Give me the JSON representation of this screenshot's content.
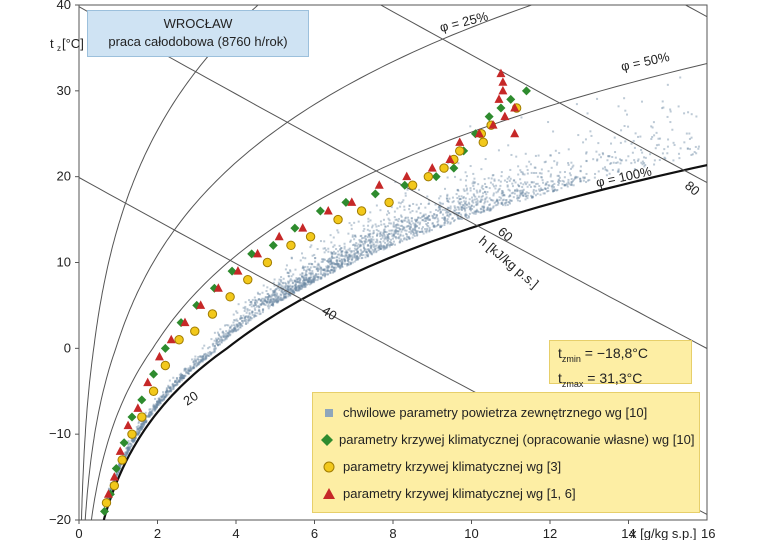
{
  "chart_data": {
    "type": "scatter",
    "title": "WROCŁAW",
    "subtitle": "praca całodobowa (8760 h/rok)",
    "xlabel": "x [g/kg s.p.]",
    "ylabel": "t",
    "ylabel_sub": "z",
    "ylabel_unit": "[°C]",
    "xlim": [
      0,
      16
    ],
    "ylim": [
      -20,
      40
    ],
    "x_ticks": [
      "0",
      "2",
      "4",
      "6",
      "8",
      "10",
      "12",
      "14"
    ],
    "x_last_tick": "16",
    "y_ticks": [
      "40",
      "30",
      "20",
      "10",
      "0",
      "−10",
      "−20"
    ],
    "rh_curves": [
      {
        "label": "φ = 25%",
        "rh": 0.25
      },
      {
        "label": "φ = 50%",
        "rh": 0.5
      },
      {
        "label": "φ = 100%",
        "rh": 1.0
      }
    ],
    "enthalpy_lines": [
      {
        "label": "20",
        "h": 20
      },
      {
        "label": "40",
        "h": 40
      },
      {
        "label": "60",
        "h": 60
      },
      {
        "label": "80",
        "h": 80
      }
    ],
    "enthalpy_axis_label": "h [kJ/kg p.s.]",
    "stats": {
      "tzmin_label": "t",
      "tzmin_sub": "zmin",
      "tzmin_value": "= −18,8°C",
      "tzmax_label": "t",
      "tzmax_sub": "zmax",
      "tzmax_value": "= 31,3°C"
    },
    "legend": [
      {
        "label": "chwilowe parametry powietrza zewnętrznego wg [10]",
        "marker": "square",
        "color": "#8ea6bb"
      },
      {
        "label": "parametry krzywej klimatycznej (opracowanie własne) wg [10]",
        "marker": "diamond",
        "color": "#2e8b2e"
      },
      {
        "label": "parametry krzywej klimatycznej wg [3]",
        "marker": "circle",
        "color": "#f2c81b"
      },
      {
        "label": "parametry krzywej klimatycznej wg [1, 6]",
        "marker": "triangle",
        "color": "#c62828"
      }
    ],
    "series": [
      {
        "name": "parametry krzywej klimatycznej (opracowanie własne) wg [10]",
        "x": [
          0.65,
          0.8,
          0.95,
          1.15,
          1.35,
          1.6,
          1.9,
          2.2,
          2.6,
          3.0,
          3.45,
          3.9,
          4.4,
          4.95,
          5.5,
          6.15,
          6.8,
          7.55,
          8.3,
          9.1,
          9.55,
          9.8,
          10.1,
          10.45,
          10.75,
          11.0,
          11.4
        ],
        "y": [
          -19,
          -17,
          -14,
          -11,
          -8,
          -6,
          -3,
          0,
          3,
          5,
          7,
          9,
          11,
          12,
          14,
          16,
          17,
          18,
          19,
          20,
          21,
          23,
          25,
          27,
          28,
          29,
          30
        ]
      },
      {
        "name": "parametry krzywej klimatycznej wg [3]",
        "x": [
          0.7,
          0.9,
          1.1,
          1.35,
          1.6,
          1.9,
          2.2,
          2.55,
          2.95,
          3.4,
          3.85,
          4.3,
          4.8,
          5.4,
          5.9,
          6.6,
          7.2,
          7.9,
          8.5,
          8.9,
          9.3,
          9.55,
          9.7,
          10.3,
          10.25,
          10.5,
          11.15
        ],
        "y": [
          -18,
          -16,
          -13,
          -10,
          -8,
          -5,
          -2,
          1,
          2,
          4,
          6,
          8,
          10,
          12,
          13,
          15,
          16,
          17,
          19,
          20,
          21,
          22,
          23,
          24,
          25,
          26,
          28
        ]
      },
      {
        "name": "parametry krzywej klimatycznej wg [1, 6]",
        "x": [
          0.75,
          0.9,
          1.05,
          1.25,
          1.5,
          1.75,
          2.05,
          2.35,
          2.7,
          3.1,
          3.55,
          4.05,
          4.55,
          5.1,
          5.7,
          6.35,
          6.95,
          7.65,
          8.35,
          9.0,
          9.45,
          9.7,
          10.2,
          10.55,
          10.85,
          11.1,
          10.7,
          10.8,
          10.8,
          10.75,
          11.1
        ],
        "y": [
          -17,
          -15,
          -12,
          -9,
          -7,
          -4,
          -1,
          1,
          3,
          5,
          7,
          9,
          11,
          13,
          14,
          16,
          17,
          19,
          20,
          21,
          22,
          24,
          25,
          26,
          27,
          28,
          29,
          30,
          31,
          32,
          25
        ]
      }
    ]
  }
}
